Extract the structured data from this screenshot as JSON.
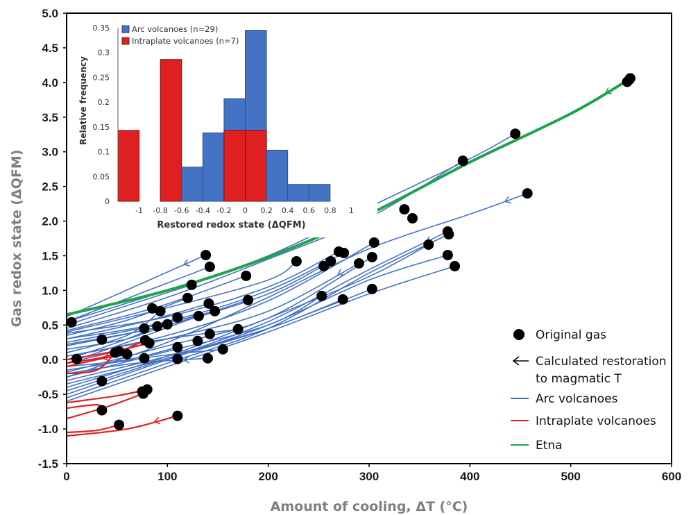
{
  "chart_data": [
    {
      "type": "scatter",
      "role": "main",
      "xlabel": "Amount of cooling, ΔT (°C)",
      "ylabel": "Gas redox state (ΔQFM)",
      "xlim": [
        0,
        600
      ],
      "ylim": [
        -1.5,
        5.0
      ],
      "x_ticks": [
        "0",
        "100",
        "200",
        "300",
        "400",
        "500",
        "600"
      ],
      "y_ticks": [
        "5.0",
        "4.5",
        "4.0",
        "3.5",
        "3.0",
        "2.5",
        "2.0",
        "1.5",
        "1.0",
        "0.5",
        "0.0",
        "-0.5",
        "-1.0",
        "-1.5"
      ],
      "grid": false,
      "legend_position": "bottom-right",
      "legend": [
        {
          "label": "Original gas",
          "marker": "circle",
          "color": "#000000"
        },
        {
          "label": "Calculated restoration",
          "label2": "to magmatic T",
          "marker": "arrow",
          "color": "#000000"
        },
        {
          "label": "Arc volcanoes",
          "marker": "line",
          "color": "#4472C4"
        },
        {
          "label": "Intraplate volcanoes",
          "marker": "line",
          "color": "#E02020"
        },
        {
          "label": "Etna",
          "marker": "line",
          "color": "#1FA34A"
        }
      ],
      "original_gas_points": [
        [
          5,
          0.54
        ],
        [
          10,
          0.01
        ],
        [
          35,
          0.29
        ],
        [
          35,
          -0.31
        ],
        [
          35,
          -0.73
        ],
        [
          48,
          0.1
        ],
        [
          52,
          0.12
        ],
        [
          52,
          -0.94
        ],
        [
          60,
          0.08
        ],
        [
          75,
          -0.46
        ],
        [
          76,
          -0.49
        ],
        [
          77,
          0.02
        ],
        [
          77,
          0.45
        ],
        [
          78,
          0.28
        ],
        [
          80,
          -0.43
        ],
        [
          82,
          0.24
        ],
        [
          85,
          0.74
        ],
        [
          90,
          0.48
        ],
        [
          93,
          0.7
        ],
        [
          100,
          0.51
        ],
        [
          110,
          0.01
        ],
        [
          110,
          0.18
        ],
        [
          110,
          0.61
        ],
        [
          110,
          -0.81
        ],
        [
          120,
          0.89
        ],
        [
          124,
          1.08
        ],
        [
          130,
          0.27
        ],
        [
          131,
          0.63
        ],
        [
          138,
          1.51
        ],
        [
          140,
          0.02
        ],
        [
          141,
          0.81
        ],
        [
          142,
          1.34
        ],
        [
          142,
          0.37
        ],
        [
          147,
          0.7
        ],
        [
          155,
          0.15
        ],
        [
          170,
          0.44
        ],
        [
          178,
          1.21
        ],
        [
          180,
          0.86
        ],
        [
          228,
          1.42
        ],
        [
          253,
          0.92
        ],
        [
          255,
          1.35
        ],
        [
          262,
          1.42
        ],
        [
          270,
          1.56
        ],
        [
          274,
          0.87
        ],
        [
          275,
          1.54
        ],
        [
          290,
          1.39
        ],
        [
          303,
          1.48
        ],
        [
          303,
          1.02
        ],
        [
          305,
          1.69
        ],
        [
          335,
          2.17
        ],
        [
          343,
          2.04
        ],
        [
          359,
          1.66
        ],
        [
          378,
          1.85
        ],
        [
          378,
          1.51
        ],
        [
          379,
          1.81
        ],
        [
          385,
          1.35
        ],
        [
          393,
          2.87
        ],
        [
          445,
          3.26
        ],
        [
          457,
          2.4
        ],
        [
          556,
          4.01
        ],
        [
          558,
          4.04
        ],
        [
          559,
          4.06
        ]
      ],
      "etna_curve": [
        [
          0,
          0.65
        ],
        [
          100,
          1.0
        ],
        [
          200,
          1.48
        ],
        [
          300,
          2.1
        ],
        [
          400,
          2.85
        ],
        [
          500,
          3.55
        ],
        [
          555,
          4.02
        ]
      ],
      "series": [
        {
          "name": "Arc volcanoes",
          "color": "#4472C4",
          "curves": [
            [
              [
                0,
                0.62
              ],
              [
                138,
                1.51
              ]
            ],
            [
              [
                0,
                0.55
              ],
              [
                142,
                1.34
              ]
            ],
            [
              [
                0,
                0.5
              ],
              [
                124,
                1.08
              ]
            ],
            [
              [
                0,
                0.42
              ],
              [
                90,
                0.76
              ],
              [
                178,
                1.21
              ]
            ],
            [
              [
                0,
                0.35
              ],
              [
                60,
                0.57
              ],
              [
                120,
                0.89
              ]
            ],
            [
              [
                0,
                0.3
              ],
              [
                80,
                0.56
              ],
              [
                141,
                0.81
              ]
            ],
            [
              [
                0,
                0.25
              ],
              [
                90,
                0.5
              ],
              [
                147,
                0.7
              ]
            ],
            [
              [
                0,
                0.2
              ],
              [
                100,
                0.5
              ],
              [
                180,
                0.86
              ]
            ],
            [
              [
                0,
                0.15
              ],
              [
                60,
                0.3
              ],
              [
                100,
                0.51
              ]
            ],
            [
              [
                0,
                0.05
              ],
              [
                90,
                0.28
              ],
              [
                170,
                0.44
              ]
            ],
            [
              [
                0,
                -0.1
              ],
              [
                60,
                0.0
              ],
              [
                110,
                0.18
              ]
            ],
            [
              [
                0,
                -0.15
              ],
              [
                90,
                0.05
              ],
              [
                155,
                0.15
              ]
            ],
            [
              [
                0,
                -0.2
              ],
              [
                70,
                -0.05
              ],
              [
                140,
                0.02
              ]
            ],
            [
              [
                0,
                0.4
              ],
              [
                100,
                0.75
              ],
              [
                200,
                1.15
              ],
              [
                228,
                1.42
              ]
            ],
            [
              [
                0,
                0.38
              ],
              [
                100,
                0.62
              ],
              [
                200,
                1.05
              ],
              [
                270,
                1.56
              ]
            ],
            [
              [
                0,
                0.3
              ],
              [
                100,
                0.55
              ],
              [
                200,
                1.0
              ],
              [
                275,
                1.54
              ]
            ],
            [
              [
                0,
                0.22
              ],
              [
                100,
                0.5
              ],
              [
                200,
                0.95
              ],
              [
                262,
                1.42
              ]
            ],
            [
              [
                0,
                0.05
              ],
              [
                100,
                0.35
              ],
              [
                200,
                0.85
              ],
              [
                305,
                1.69
              ]
            ],
            [
              [
                0,
                -0.05
              ],
              [
                100,
                0.3
              ],
              [
                200,
                0.7
              ],
              [
                290,
                1.39
              ]
            ],
            [
              [
                0,
                -0.18
              ],
              [
                100,
                0.2
              ],
              [
                200,
                0.6
              ],
              [
                303,
                1.48
              ]
            ],
            [
              [
                0,
                -0.25
              ],
              [
                100,
                0.12
              ],
              [
                200,
                0.5
              ],
              [
                253,
                0.92
              ]
            ],
            [
              [
                0,
                -0.3
              ],
              [
                100,
                0.05
              ],
              [
                200,
                0.45
              ],
              [
                274,
                0.87
              ]
            ],
            [
              [
                0,
                -0.35
              ],
              [
                100,
                0.02
              ],
              [
                200,
                0.45
              ],
              [
                303,
                1.02
              ]
            ],
            [
              [
                0,
                -0.4
              ],
              [
                100,
                0.05
              ],
              [
                200,
                0.6
              ],
              [
                300,
                1.2
              ],
              [
                359,
                1.66
              ]
            ],
            [
              [
                0,
                -0.45
              ],
              [
                100,
                0.02
              ],
              [
                200,
                0.55
              ],
              [
                300,
                1.3
              ],
              [
                378,
                1.85
              ]
            ],
            [
              [
                0,
                -0.5
              ],
              [
                100,
                0.0
              ],
              [
                200,
                0.5
              ],
              [
                300,
                1.15
              ],
              [
                378,
                1.51
              ]
            ],
            [
              [
                0,
                -0.55
              ],
              [
                100,
                -0.05
              ],
              [
                200,
                0.45
              ],
              [
                300,
                1.25
              ],
              [
                379,
                1.81
              ]
            ],
            [
              [
                0,
                -0.6
              ],
              [
                100,
                -0.1
              ],
              [
                200,
                0.4
              ],
              [
                300,
                0.95
              ],
              [
                385,
                1.35
              ]
            ],
            [
              [
                0,
                0.45
              ],
              [
                100,
                0.9
              ],
              [
                200,
                1.45
              ],
              [
                300,
                2.05
              ],
              [
                393,
                2.87
              ]
            ],
            [
              [
                0,
                0.55
              ],
              [
                100,
                1.0
              ],
              [
                200,
                1.5
              ],
              [
                300,
                2.2
              ],
              [
                400,
                2.9
              ],
              [
                445,
                3.26
              ]
            ],
            [
              [
                0,
                -0.25
              ],
              [
                100,
                0.25
              ],
              [
                200,
                0.9
              ],
              [
                300,
                1.6
              ],
              [
                400,
                2.1
              ],
              [
                457,
                2.4
              ]
            ],
            [
              [
                0,
                0.0
              ],
              [
                60,
                0.3
              ],
              [
                110,
                0.61
              ]
            ],
            [
              [
                0,
                -0.05
              ],
              [
                60,
                0.25
              ],
              [
                131,
                0.63
              ]
            ],
            [
              [
                0,
                0.1
              ],
              [
                60,
                0.35
              ],
              [
                93,
                0.7
              ]
            ]
          ]
        },
        {
          "name": "Intraplate volcanoes",
          "color": "#E02020",
          "curves": [
            [
              [
                0,
                -1.1
              ],
              [
                60,
                -1.0
              ],
              [
                110,
                -0.81
              ]
            ],
            [
              [
                0,
                -1.05
              ],
              [
                30,
                -1.02
              ],
              [
                52,
                -0.94
              ]
            ],
            [
              [
                0,
                -0.85
              ],
              [
                40,
                -0.68
              ],
              [
                76,
                -0.49
              ]
            ],
            [
              [
                0,
                -0.7
              ],
              [
                30,
                -0.65
              ],
              [
                35,
                -0.73
              ]
            ],
            [
              [
                0,
                -0.62
              ],
              [
                50,
                -0.52
              ],
              [
                80,
                -0.43
              ]
            ],
            [
              [
                0,
                -0.2
              ],
              [
                30,
                -0.15
              ],
              [
                48,
                0.1
              ]
            ],
            [
              [
                0,
                -0.1
              ],
              [
                30,
                0.0
              ],
              [
                60,
                0.08
              ]
            ],
            [
              [
                0,
                -0.05
              ],
              [
                40,
                0.05
              ],
              [
                78,
                0.28
              ]
            ],
            [
              [
                0,
                0.0
              ],
              [
                40,
                0.1
              ],
              [
                82,
                0.24
              ]
            ]
          ]
        }
      ]
    },
    {
      "type": "bar",
      "role": "inset-histogram",
      "xlabel": "Restored redox state (ΔQFM)",
      "ylabel": "Relative frequency",
      "xlim": [
        -1.2,
        1.2
      ],
      "ylim": [
        0,
        0.35
      ],
      "x_ticks": [
        "-1",
        "-0.8",
        "-0.6",
        "-0.4",
        "-0.2",
        "0",
        "0.2",
        "0.4",
        "0.6",
        "0.8",
        "1"
      ],
      "y_ticks": [
        "0.35",
        "0.3",
        "0.25",
        "0.2",
        "0.15",
        "0.1",
        "0.05",
        "0"
      ],
      "legend_position": "top-left",
      "bin_edges": [
        -1.2,
        -1.0,
        -0.8,
        -0.6,
        -0.4,
        -0.2,
        0.0,
        0.2,
        0.4,
        0.6,
        0.8
      ],
      "series": [
        {
          "name": "Arc volcanoes (n=29)",
          "color": "#4472C4",
          "values": [
            0,
            0,
            0.035,
            0.069,
            0.138,
            0.207,
            0.345,
            0.103,
            0.034,
            0.034
          ]
        },
        {
          "name": "Intraplate volcanoes (n=7)",
          "color": "#E02020",
          "values": [
            0.143,
            0,
            0.286,
            0,
            0,
            0.143,
            0.143,
            0,
            0,
            0
          ]
        }
      ]
    }
  ]
}
